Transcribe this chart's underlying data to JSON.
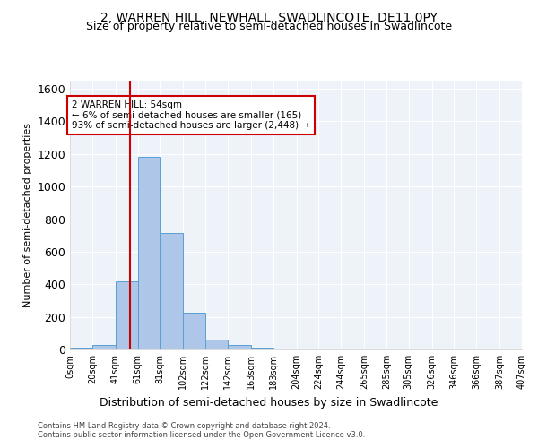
{
  "title": "2, WARREN HILL, NEWHALL, SWADLINCOTE, DE11 0PY",
  "subtitle": "Size of property relative to semi-detached houses in Swadlincote",
  "xlabel": "Distribution of semi-detached houses by size in Swadlincote",
  "ylabel": "Number of semi-detached properties",
  "footer_line1": "Contains HM Land Registry data © Crown copyright and database right 2024.",
  "footer_line2": "Contains public sector information licensed under the Open Government Licence v3.0.",
  "bin_edges": [
    0,
    20,
    41,
    61,
    81,
    102,
    122,
    142,
    163,
    183,
    204,
    224,
    244,
    265,
    285,
    305,
    326,
    346,
    366,
    387,
    407
  ],
  "bar_heights": [
    10,
    30,
    420,
    1180,
    715,
    225,
    60,
    30,
    12,
    3,
    0,
    0,
    0,
    0,
    0,
    0,
    0,
    0,
    0,
    0
  ],
  "bar_color": "#aec6e8",
  "bar_edge_color": "#5a9fd4",
  "property_size": 54,
  "property_label": "2 WARREN HILL: 54sqm",
  "pct_smaller": 6,
  "count_smaller": 165,
  "pct_larger": 93,
  "count_larger": 2448,
  "vline_color": "#cc0000",
  "annotation_box_color": "#cc0000",
  "ylim": [
    0,
    1650
  ],
  "bg_color": "#eef2f9",
  "title_fontsize": 10,
  "subtitle_fontsize": 9,
  "tick_label_fontsize": 7,
  "ylabel_fontsize": 8,
  "xlabel_fontsize": 9
}
